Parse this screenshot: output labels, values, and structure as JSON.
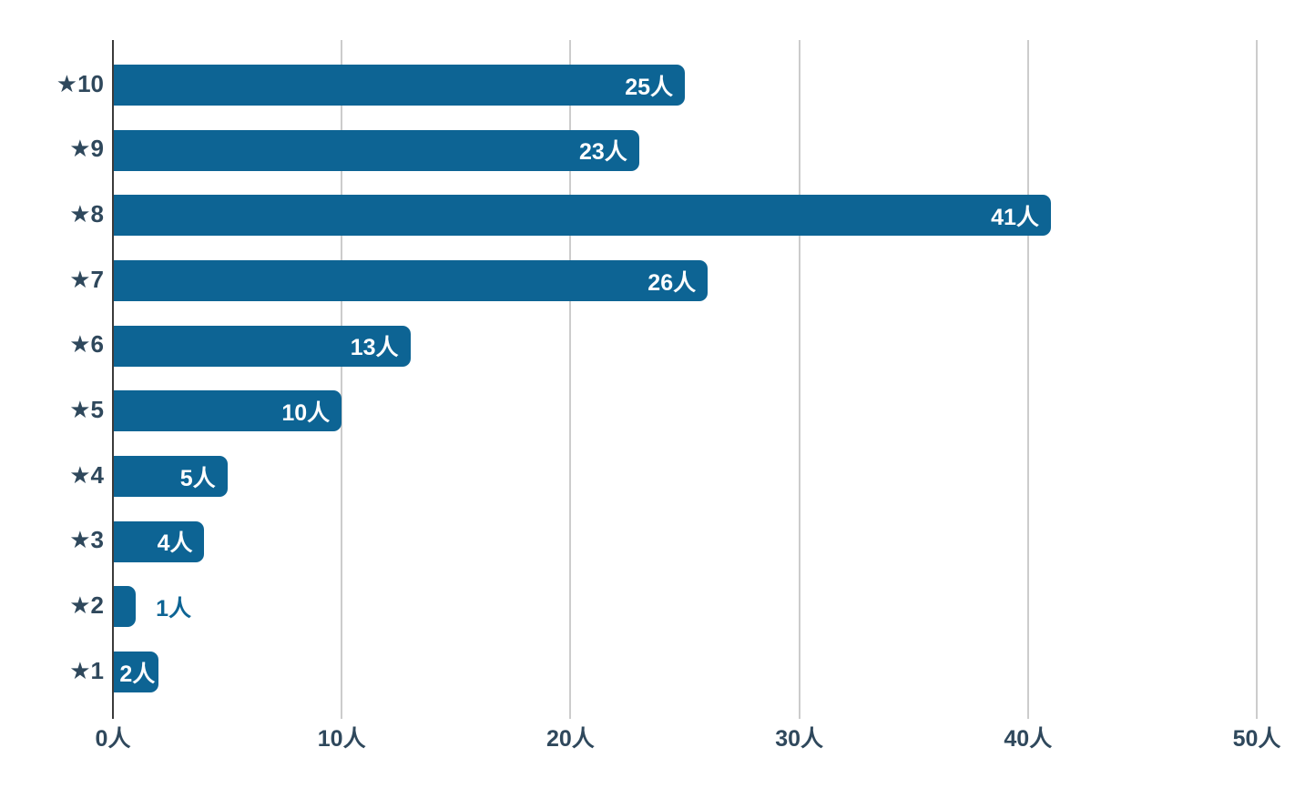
{
  "colors": {
    "bar": "#0d6494",
    "text_dark": "#2f485c",
    "value_inside_text": "#ffffff",
    "value_outside_text": "#0d6494",
    "gridline": "#cccccc",
    "zero_axis_line": "#3a3a3a",
    "background": "#ffffff"
  },
  "chart_data": {
    "type": "bar",
    "orientation": "horizontal",
    "title": "",
    "categories": [
      "★10",
      "★9",
      "★8",
      "★7",
      "★6",
      "★5",
      "★4",
      "★3",
      "★2",
      "★1"
    ],
    "values": [
      25,
      23,
      41,
      26,
      13,
      10,
      5,
      4,
      1,
      2
    ],
    "value_labels": [
      "25人",
      "23人",
      "41人",
      "26人",
      "13人",
      "10人",
      "5人",
      "4人",
      "1人",
      "2人"
    ],
    "value_label_inside": [
      true,
      true,
      true,
      true,
      true,
      true,
      true,
      true,
      false,
      true
    ],
    "unit": "人",
    "x_ticks": [
      0,
      10,
      20,
      30,
      40,
      50
    ],
    "x_tick_labels": [
      "0人",
      "10人",
      "20人",
      "30人",
      "40人",
      "50人"
    ],
    "xlim": [
      0,
      50
    ],
    "grid": true,
    "legend": false
  }
}
